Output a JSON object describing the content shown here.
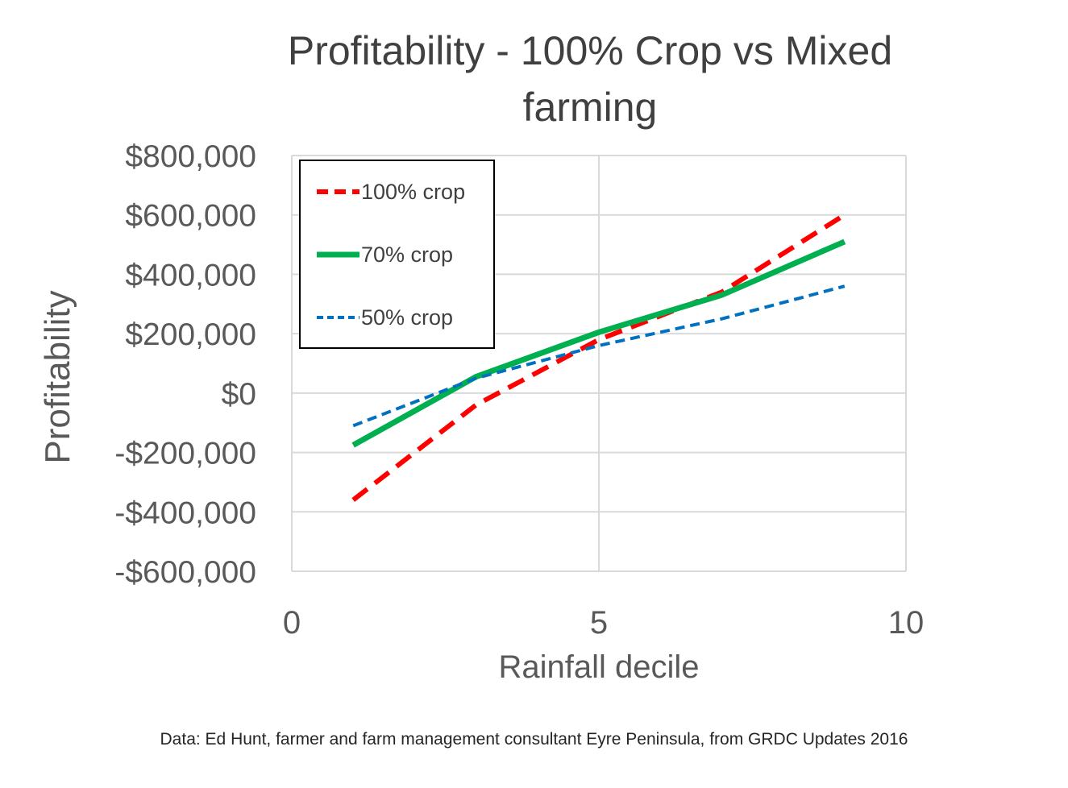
{
  "chart_data": {
    "type": "line",
    "title": [
      "Profitability - 100% Crop vs Mixed",
      "farming"
    ],
    "xlabel": "Rainfall decile",
    "ylabel": "Profitability",
    "xlim": [
      0,
      10
    ],
    "ylim": [
      -600000,
      800000
    ],
    "xticks": [
      0,
      5,
      10
    ],
    "xtick_labels": [
      "0",
      "5",
      "10"
    ],
    "yticks": [
      800000,
      600000,
      400000,
      200000,
      0,
      -200000,
      -400000,
      -600000
    ],
    "ytick_labels": [
      "$800,000",
      "$600,000",
      "$400,000",
      "$200,000",
      "$0",
      "-$200,000",
      "-$400,000",
      "-$600,000"
    ],
    "grid": true,
    "legend_position": "top-left",
    "series": [
      {
        "name": "100% crop",
        "color": "#ff0000",
        "style": "dashed",
        "x": [
          1,
          3,
          5,
          7,
          9
        ],
        "y": [
          -360000,
          -40000,
          180000,
          340000,
          600000
        ]
      },
      {
        "name": "70% crop",
        "color": "#00b050",
        "style": "solid",
        "x": [
          1,
          3,
          5,
          7,
          9
        ],
        "y": [
          -175000,
          55000,
          205000,
          330000,
          510000
        ]
      },
      {
        "name": "50% crop",
        "color": "#0070c0",
        "style": "dotted",
        "x": [
          1,
          3,
          5,
          7,
          9
        ],
        "y": [
          -110000,
          50000,
          160000,
          250000,
          360000
        ]
      }
    ],
    "source": "Data: Ed Hunt, farmer and farm management consultant  Eyre Peninsula,  from GRDC Updates 2016"
  }
}
